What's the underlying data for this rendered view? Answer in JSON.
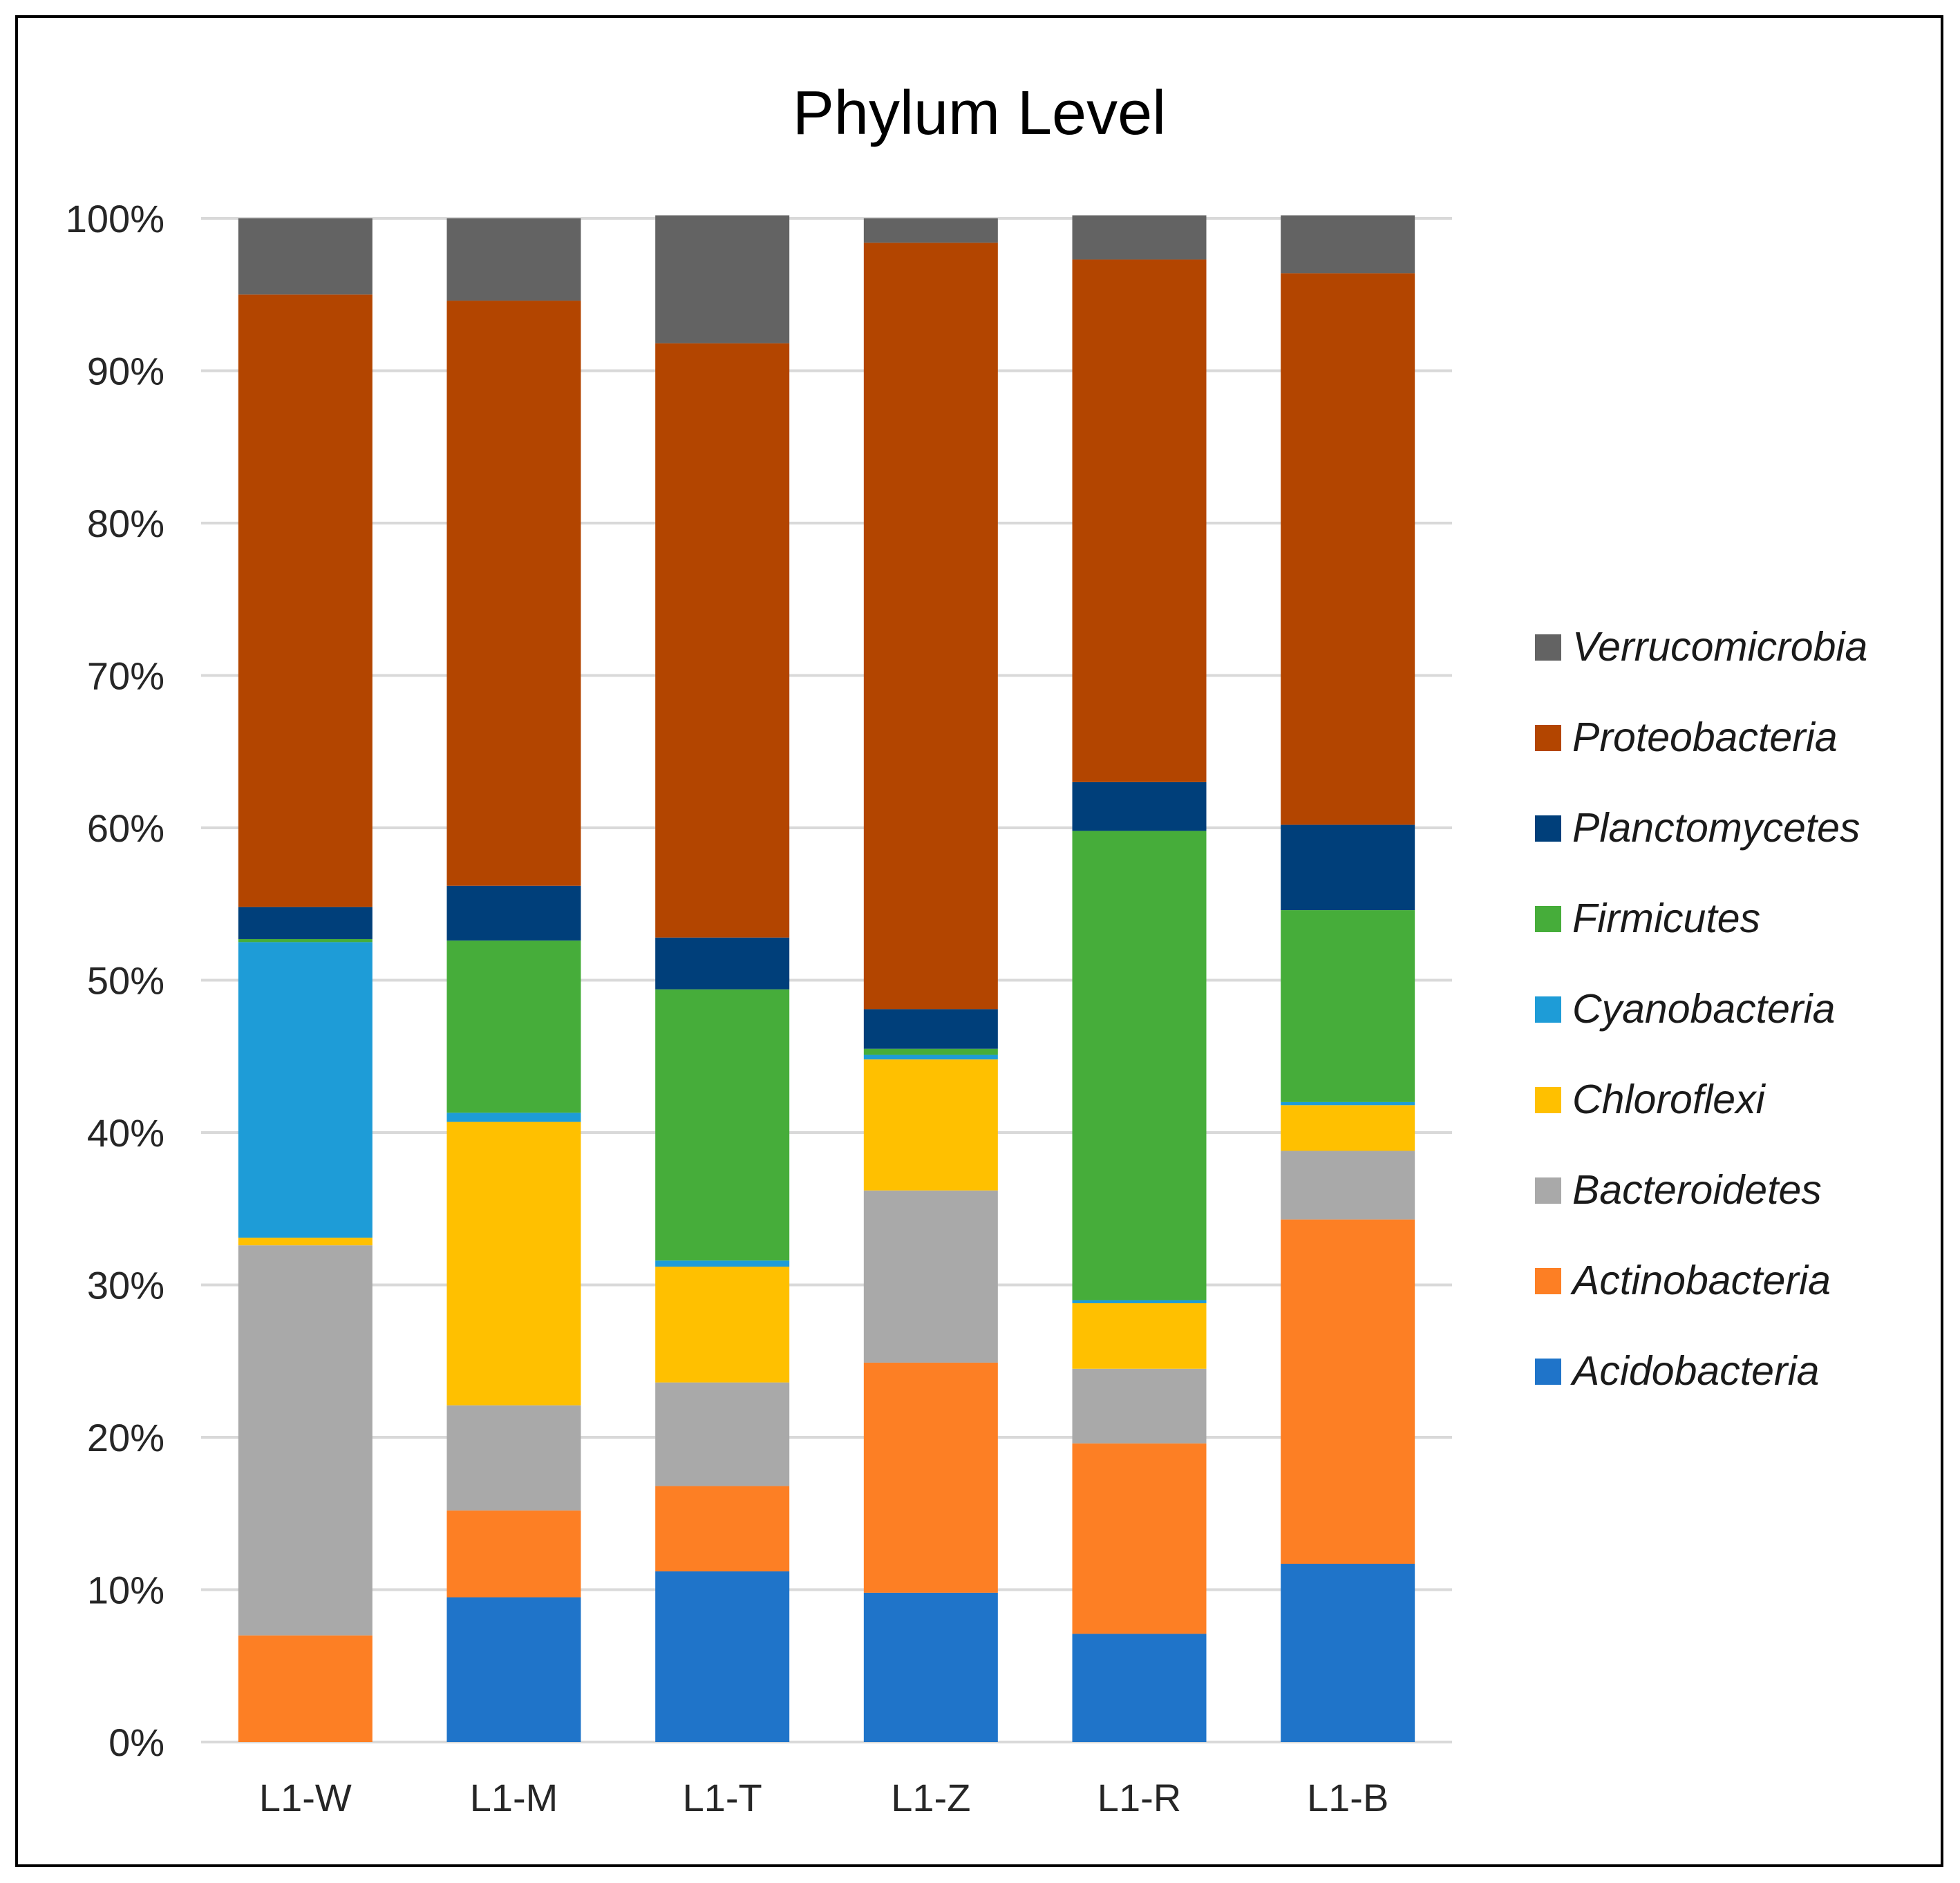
{
  "chart_data": {
    "type": "bar",
    "stacked": true,
    "percent": true,
    "title": "Phylum Level",
    "xlabel": "",
    "ylabel": "",
    "ylim": [
      0,
      100
    ],
    "yticks": [
      "0%",
      "10%",
      "20%",
      "30%",
      "40%",
      "50%",
      "60%",
      "70%",
      "80%",
      "90%",
      "100%"
    ],
    "categories": [
      "L1-W",
      "L1-M",
      "L1-T",
      "L1-Z",
      "L1-R",
      "L1-B"
    ],
    "legend_position": "right",
    "grid": true,
    "series": [
      {
        "name": "Acidobacteria",
        "color": "#1f74c9",
        "values": [
          0.0,
          9.5,
          11.2,
          9.8,
          7.1,
          11.7
        ]
      },
      {
        "name": "Actinobacteria",
        "color": "#fd7f24",
        "values": [
          7.0,
          5.7,
          5.6,
          15.1,
          12.5,
          22.6
        ]
      },
      {
        "name": "Bacteroidetes",
        "color": "#a9a9a9",
        "values": [
          25.6,
          6.9,
          6.8,
          11.3,
          4.9,
          4.5
        ]
      },
      {
        "name": "Chloroflexi",
        "color": "#ffc000",
        "values": [
          0.5,
          18.6,
          7.6,
          8.6,
          4.3,
          3.0
        ]
      },
      {
        "name": "Cyanobacteria",
        "color": "#1e9cd7",
        "values": [
          19.4,
          0.6,
          0.4,
          0.3,
          0.2,
          0.2
        ]
      },
      {
        "name": "Firmicutes",
        "color": "#46ad3a",
        "values": [
          0.2,
          11.3,
          17.8,
          0.4,
          30.8,
          12.6
        ]
      },
      {
        "name": "Planctomycetes",
        "color": "#003f7a",
        "values": [
          2.1,
          3.6,
          3.4,
          2.6,
          3.2,
          5.6
        ]
      },
      {
        "name": "Proteobacteria",
        "color": "#b34500",
        "values": [
          40.2,
          38.4,
          39.0,
          50.3,
          34.3,
          36.2
        ]
      },
      {
        "name": "Verrucomicrobia",
        "color": "#636363",
        "values": [
          5.0,
          5.4,
          8.4,
          1.6,
          2.9,
          3.8
        ]
      }
    ]
  }
}
